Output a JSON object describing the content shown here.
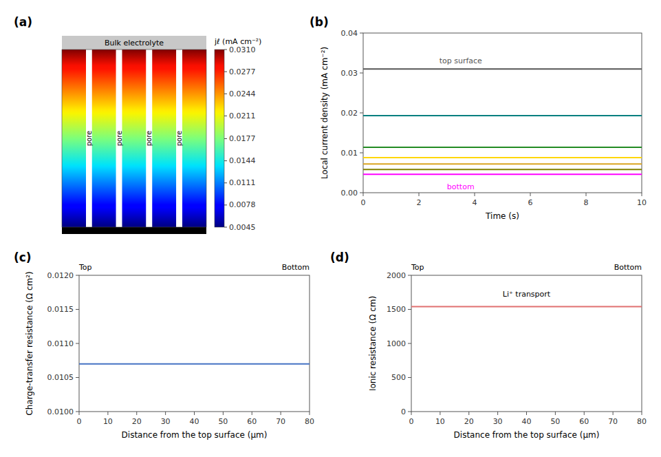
{
  "chart_data": [
    {
      "type": "heatmap",
      "title": "(a)",
      "colorbar_label": "jℓ (mA cm⁻²)",
      "clim": [
        0.0045,
        0.031
      ],
      "colorbar_ticks": [
        0.0045,
        0.0078,
        0.0111,
        0.0144,
        0.0177,
        0.0211,
        0.0244,
        0.0277,
        {
          "value": 0.031,
          "label": "0.0310"
        }
      ],
      "annotations": [
        "Bulk electrolyte"
      ],
      "pore_labels": [
        "pore",
        "pore",
        "pore",
        "pore"
      ]
    },
    {
      "type": "line",
      "title": "(b)",
      "xlabel": "Time (s)",
      "ylabel": "Local current density (mA cm⁻²)",
      "x": [
        0,
        10
      ],
      "series": [
        {
          "color": "#555555",
          "values": [
            0.031,
            0.031
          ]
        },
        {
          "color": "#008080",
          "values": [
            0.0193,
            0.0193
          ]
        },
        {
          "color": "#228B22",
          "values": [
            0.0114,
            0.0114
          ]
        },
        {
          "color": "#FFD700",
          "values": [
            0.0088,
            0.0088
          ]
        },
        {
          "color": "#DAA520",
          "values": [
            0.0072,
            0.0072
          ]
        },
        {
          "color": "#808000",
          "values": [
            0.0058,
            0.0058
          ]
        },
        {
          "color": "#FF00FF",
          "values": [
            0.0046,
            0.0046
          ]
        }
      ],
      "annotations": [
        {
          "text": "top surface",
          "x": 3.5,
          "y": 0.033
        },
        {
          "text": "bottom",
          "x": 3.5,
          "y": 0.0015
        }
      ],
      "xlim": [
        0,
        10
      ],
      "ylim": [
        0,
        0.04
      ],
      "xticks": [
        0,
        2,
        4,
        6,
        8,
        10
      ],
      "yticks": [
        {
          "value": 0,
          "label": "0.00"
        },
        0.01,
        0.02,
        0.03,
        0.04
      ]
    },
    {
      "type": "line",
      "title": "(c)",
      "xlabel": "Distance from the top surface (μm)",
      "ylabel": "Charge-transfer resistance (Ω cm²)",
      "x": [
        0,
        80
      ],
      "values": [
        0.0107,
        0.0107
      ],
      "color": "#4472C4",
      "edge_labels": [
        "Top",
        "Bottom"
      ],
      "xlim": [
        0,
        80
      ],
      "ylim": [
        0.01,
        0.012
      ],
      "xticks": [
        0,
        10,
        20,
        30,
        40,
        50,
        60,
        70,
        80
      ],
      "yticks": [
        {
          "value": 0.01,
          "label": "0.0100"
        },
        0.0105,
        {
          "value": 0.011,
          "label": "0.0110"
        },
        0.0115,
        {
          "value": 0.012,
          "label": "0.0120"
        }
      ]
    },
    {
      "type": "line",
      "title": "(d)",
      "xlabel": "Distance from the top surface (μm)",
      "ylabel": "Ionic resistance (Ω cm)",
      "x": [
        0,
        80
      ],
      "values": [
        1540,
        1540
      ],
      "color": "#E07070",
      "edge_labels": [
        "Top",
        "Bottom"
      ],
      "annotations": [
        {
          "text": "Li⁺ transport",
          "x": 40,
          "y": 1720
        }
      ],
      "xlim": [
        0,
        80
      ],
      "ylim": [
        0,
        2000
      ],
      "xticks": [
        0,
        10,
        20,
        30,
        40,
        50,
        60,
        70,
        80
      ],
      "yticks": [
        0,
        500,
        1000,
        1500,
        2000
      ]
    }
  ]
}
